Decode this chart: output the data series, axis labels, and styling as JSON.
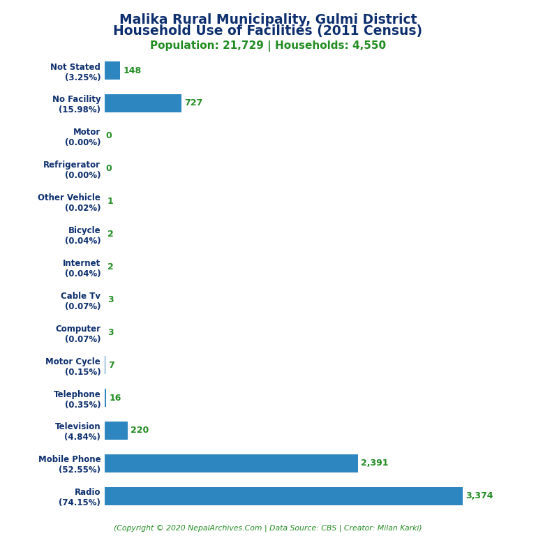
{
  "title_line1": "Malika Rural Municipality, Gulmi District",
  "title_line2": "Household Use of Facilities (2011 Census)",
  "subtitle": "Population: 21,729 | Households: 4,550",
  "footer": "(Copyright © 2020 NepalArchives.Com | Data Source: CBS | Creator: Milan Karki)",
  "categories": [
    "Not Stated\n(3.25%)",
    "No Facility\n(15.98%)",
    "Motor\n(0.00%)",
    "Refrigerator\n(0.00%)",
    "Other Vehicle\n(0.02%)",
    "Bicycle\n(0.04%)",
    "Internet\n(0.04%)",
    "Cable Tv\n(0.07%)",
    "Computer\n(0.07%)",
    "Motor Cycle\n(0.15%)",
    "Telephone\n(0.35%)",
    "Television\n(4.84%)",
    "Mobile Phone\n(52.55%)",
    "Radio\n(74.15%)"
  ],
  "values": [
    148,
    727,
    0,
    0,
    1,
    2,
    2,
    3,
    3,
    7,
    16,
    220,
    2391,
    3374
  ],
  "value_labels": [
    "148",
    "727",
    "0",
    "0",
    "1",
    "2",
    "2",
    "3",
    "3",
    "7",
    "16",
    "220",
    "2,391",
    "3,374"
  ],
  "bar_color": "#2e86c1",
  "title_color": "#0d2f6e",
  "subtitle_color": "#218c21",
  "footer_color": "#218c21",
  "value_color": "#218c21",
  "label_color": "#0d2f6e",
  "background_color": "#ffffff",
  "fig_width": 7.68,
  "fig_height": 7.68,
  "dpi": 100
}
